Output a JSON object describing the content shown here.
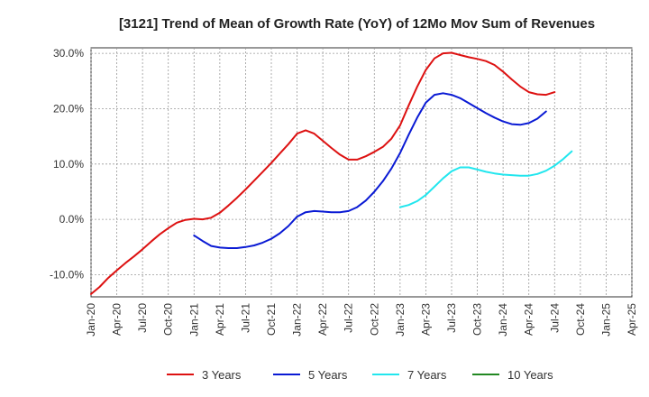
{
  "chart_data": {
    "type": "line",
    "title": "[3121]  Trend of Mean of Growth Rate (YoY) of 12Mo Mov Sum of Revenues",
    "xlabel": "",
    "ylabel": "",
    "ylim": [
      -14,
      31
    ],
    "y_ticks": [
      {
        "value": 30,
        "label": "30.0%"
      },
      {
        "value": 20,
        "label": "20.0%"
      },
      {
        "value": 10,
        "label": "10.0%"
      },
      {
        "value": 0,
        "label": "0.0%"
      },
      {
        "value": -10,
        "label": "-10.0%"
      }
    ],
    "x_range": [
      0,
      63
    ],
    "x_ticks": [
      {
        "value": 0,
        "label": "Jan-20"
      },
      {
        "value": 3,
        "label": "Apr-20"
      },
      {
        "value": 6,
        "label": "Jul-20"
      },
      {
        "value": 9,
        "label": "Oct-20"
      },
      {
        "value": 12,
        "label": "Jan-21"
      },
      {
        "value": 15,
        "label": "Apr-21"
      },
      {
        "value": 18,
        "label": "Jul-21"
      },
      {
        "value": 21,
        "label": "Oct-21"
      },
      {
        "value": 24,
        "label": "Jan-22"
      },
      {
        "value": 27,
        "label": "Apr-22"
      },
      {
        "value": 30,
        "label": "Jul-22"
      },
      {
        "value": 33,
        "label": "Oct-22"
      },
      {
        "value": 36,
        "label": "Jan-23"
      },
      {
        "value": 39,
        "label": "Apr-23"
      },
      {
        "value": 42,
        "label": "Jul-23"
      },
      {
        "value": 45,
        "label": "Oct-23"
      },
      {
        "value": 48,
        "label": "Jan-24"
      },
      {
        "value": 51,
        "label": "Apr-24"
      },
      {
        "value": 54,
        "label": "Jul-24"
      },
      {
        "value": 57,
        "label": "Oct-24"
      },
      {
        "value": 60,
        "label": "Jan-25"
      },
      {
        "value": 63,
        "label": "Apr-25"
      }
    ],
    "series": [
      {
        "name": "3 Years",
        "color": "#dd1111",
        "start": 0,
        "values": [
          -13.5,
          -12.2,
          -10.6,
          -9.2,
          -7.9,
          -6.7,
          -5.4,
          -4.0,
          -2.7,
          -1.6,
          -0.6,
          -0.1,
          0.1,
          0.0,
          0.3,
          1.2,
          2.5,
          3.9,
          5.4,
          7.0,
          8.6,
          10.2,
          11.9,
          13.6,
          15.5,
          16.1,
          15.5,
          14.2,
          12.9,
          11.7,
          10.8,
          10.8,
          11.4,
          12.2,
          13.1,
          14.6,
          17.0,
          20.6,
          24.0,
          27.0,
          29.1,
          30.0,
          30.1,
          29.7,
          29.3,
          29.0,
          28.6,
          27.9,
          26.7,
          25.3,
          24.0,
          23.0,
          22.6,
          22.5,
          23.0
        ]
      },
      {
        "name": "5 Years",
        "color": "#0a1ad4",
        "start": 12,
        "values": [
          -2.9,
          -3.9,
          -4.8,
          -5.1,
          -5.2,
          -5.2,
          -5.0,
          -4.7,
          -4.2,
          -3.5,
          -2.5,
          -1.2,
          0.5,
          1.3,
          1.5,
          1.4,
          1.3,
          1.3,
          1.5,
          2.2,
          3.4,
          5.0,
          6.9,
          9.2,
          12.0,
          15.3,
          18.4,
          21.1,
          22.5,
          22.8,
          22.5,
          21.9,
          21.0,
          20.1,
          19.2,
          18.4,
          17.7,
          17.2,
          17.1,
          17.4,
          18.2,
          19.5
        ]
      },
      {
        "name": "7 Years",
        "color": "#22e6ee",
        "start": 36,
        "values": [
          2.2,
          2.6,
          3.3,
          4.4,
          5.9,
          7.4,
          8.7,
          9.4,
          9.4,
          9.0,
          8.6,
          8.3,
          8.1,
          8.0,
          7.9,
          7.9,
          8.2,
          8.8,
          9.7,
          10.9,
          12.3
        ]
      },
      {
        "name": "10 Years",
        "color": "#228822",
        "start": 0,
        "values": []
      }
    ]
  }
}
